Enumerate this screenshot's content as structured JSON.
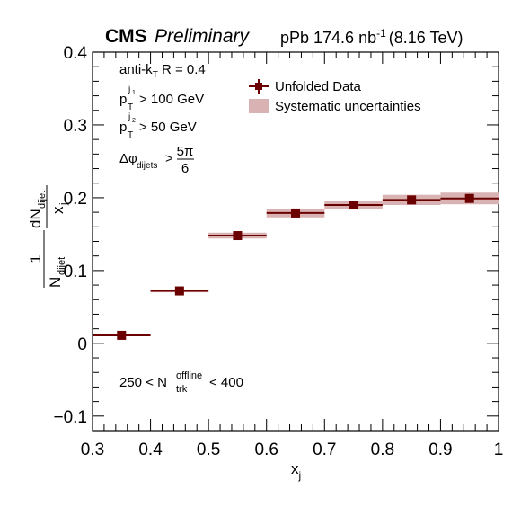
{
  "header": {
    "experiment": "CMS",
    "status": "Preliminary",
    "dataset": "pPb 174.6 nb",
    "lumi_exp": "-1",
    "energy": "(8.16 TeV)"
  },
  "cuts": {
    "algo_pre": "anti-k",
    "algo_sub": "T",
    "algo_post": " R = 0.4",
    "pt1_p": "p",
    "pt1_sup": "j",
    "pt1_supsub": "1",
    "pt1_sub": "T",
    "pt1_post": "> 100 GeV",
    "pt2_p": "p",
    "pt2_sup": "j",
    "pt2_supsub": "2",
    "pt2_sub": "T",
    "pt2_post": "> 50 GeV",
    "dphi_pre": "Δφ",
    "dphi_sub": "dijets",
    "dphi_gt": ">",
    "dphi_num": "5π",
    "dphi_den": "6",
    "mult_pre": "250 < N",
    "mult_sup": "offline",
    "mult_sub": "trk",
    "mult_post": "< 400"
  },
  "legend": {
    "data_label": "Unfolded Data",
    "syst_label": "Systematic uncertainties"
  },
  "axes": {
    "ylabel_one": "1",
    "ylabel_N": "N",
    "ylabel_N_sub": "dijet",
    "ylabel_dN": "dN",
    "ylabel_dN_sub": "dijet",
    "ylabel_dx": "x",
    "ylabel_dx_sub": "j",
    "xlabel": "x",
    "xlabel_sub": "j"
  },
  "colors": {
    "marker": "#6b0000",
    "syst_band": "#d9b3b3"
  },
  "chart_data": {
    "type": "scatter",
    "x_edges": [
      0.3,
      0.4,
      0.5,
      0.6,
      0.7,
      0.8,
      0.9,
      1.0
    ],
    "x": [
      0.35,
      0.45,
      0.55,
      0.65,
      0.75,
      0.85,
      0.95
    ],
    "y": [
      0.011,
      0.072,
      0.148,
      0.179,
      0.19,
      0.197,
      0.199
    ],
    "y_syst": [
      0.001,
      0.002,
      0.004,
      0.006,
      0.006,
      0.007,
      0.008
    ],
    "xlim": [
      0.3,
      1.0
    ],
    "ylim": [
      -0.12,
      0.4
    ],
    "x_ticks": [
      0.3,
      0.4,
      0.5,
      0.6,
      0.7,
      0.8,
      0.9,
      1.0
    ],
    "x_tick_labels": [
      "0.3",
      "0.4",
      "0.5",
      "0.6",
      "0.7",
      "0.8",
      "0.9",
      "1"
    ],
    "y_ticks": [
      -0.1,
      0.0,
      0.1,
      0.2,
      0.3,
      0.4
    ],
    "y_tick_labels": [
      "−0.1",
      "0",
      "0.1",
      "0.2",
      "0.3",
      "0.4"
    ],
    "legend_position": "top-right",
    "grid": false
  }
}
